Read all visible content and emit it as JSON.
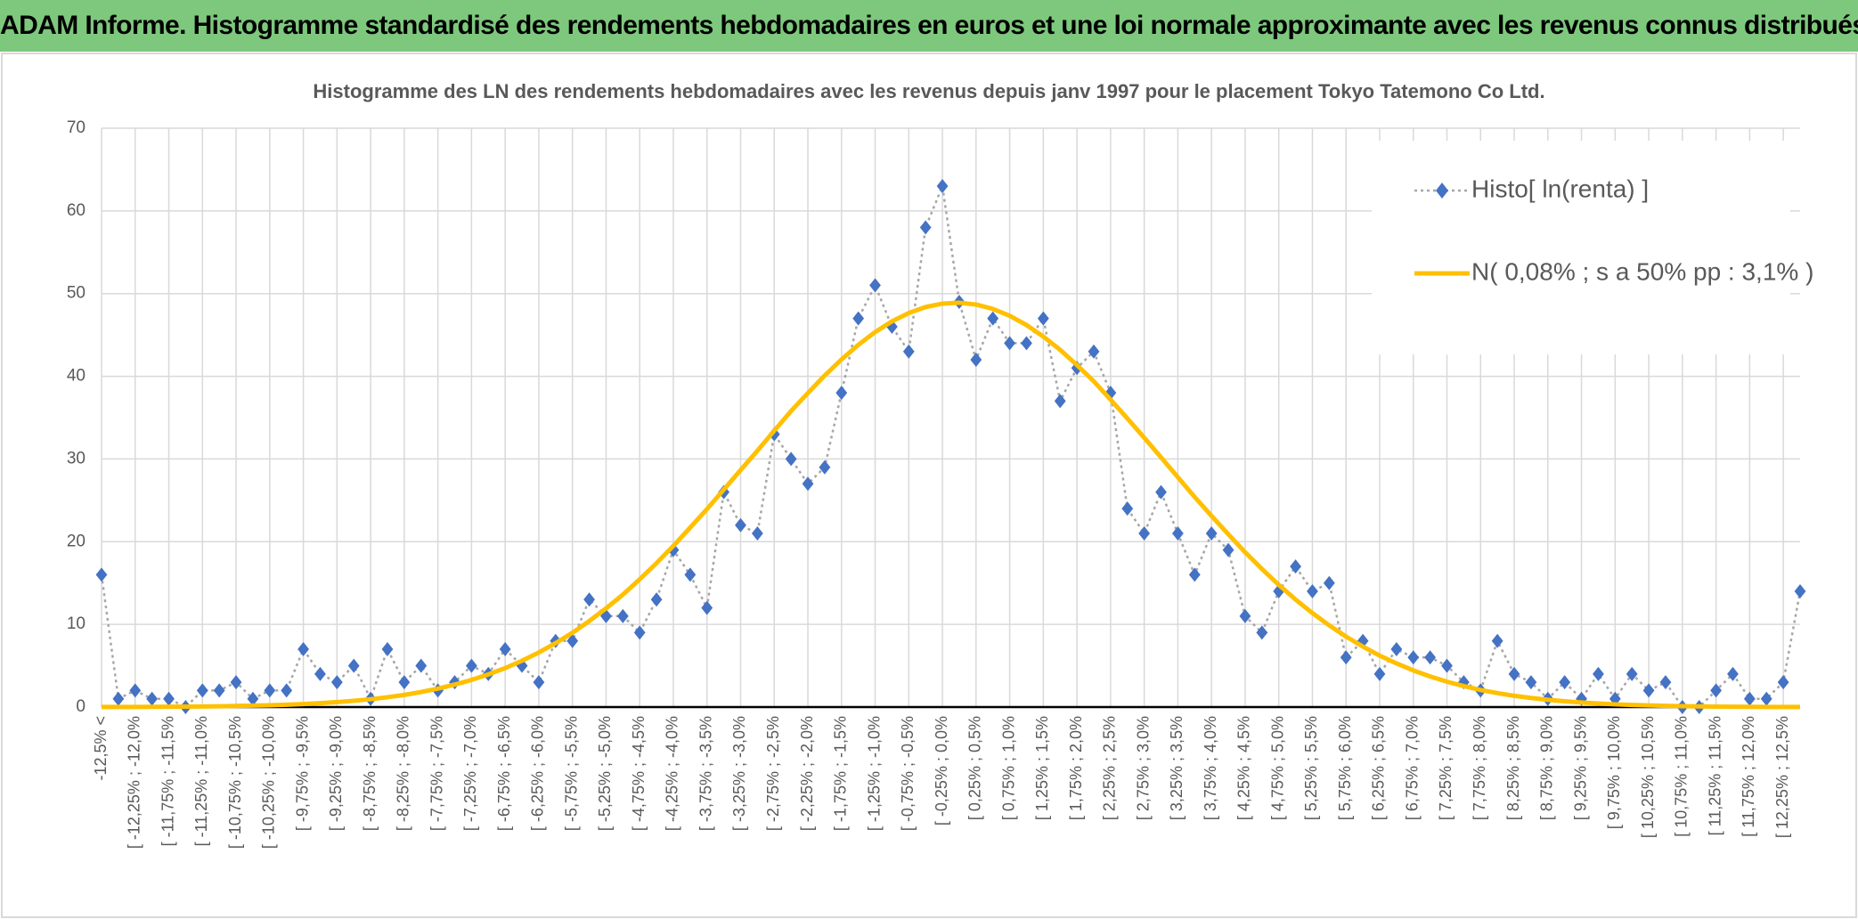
{
  "header": {
    "title": "ADAM Informe. Histogramme standardisé des rendements hebdomadaires en euros et une loi normale approximante avec les revenus connus distribués"
  },
  "chart_data": {
    "type": "line",
    "title": "Histogramme des LN des rendements hebdomadaires avec les revenus depuis janv 1997 pour le placement Tokyo Tatemono Co Ltd.",
    "categories": [
      "-12,5% <",
      null,
      "[ -12,25% ; -12,0%",
      null,
      "[ -11,75% ; -11,5%",
      null,
      "[ -11,25% ; -11,0%",
      null,
      "[ -10,75% ; -10,5%",
      null,
      "[ -10,25% ; -10,0%",
      null,
      "[ -9,75% ; -9,5%",
      null,
      "[ -9,25% ; -9,0%",
      null,
      "[ -8,75% ; -8,5%",
      null,
      "[ -8,25% ; -8,0%",
      null,
      "[ -7,75% ; -7,5%",
      null,
      "[ -7,25% ; -7,0%",
      null,
      "[ -6,75% ; -6,5%",
      null,
      "[ -6,25% ; -6,0%",
      null,
      "[ -5,75% ; -5,5%",
      null,
      "[ -5,25% ; -5,0%",
      null,
      "[ -4,75% ; -4,5%",
      null,
      "[ -4,25% ; -4,0%",
      null,
      "[ -3,75% ; -3,5%",
      null,
      "[ -3,25% ; -3,0%",
      null,
      "[ -2,75% ; -2,5%",
      null,
      "[ -2,25% ; -2,0%",
      null,
      "[ -1,75% ; -1,5%",
      null,
      "[ -1,25% ; -1,0%",
      null,
      "[ -0,75% ; -0,5%",
      null,
      "[ -0,25% ; 0,0%",
      null,
      "[ 0,25% ; 0,5%",
      null,
      "[ 0,75% ; 1,0%",
      null,
      "[ 1,25% ; 1,5%",
      null,
      "[ 1,75% ; 2,0%",
      null,
      "[ 2,25% ; 2,5%",
      null,
      "[ 2,75% ; 3,0%",
      null,
      "[ 3,25% ; 3,5%",
      null,
      "[ 3,75% ; 4,0%",
      null,
      "[ 4,25% ; 4,5%",
      null,
      "[ 4,75% ; 5,0%",
      null,
      "[ 5,25% ; 5,5%",
      null,
      "[ 5,75% ; 6,0%",
      null,
      "[ 6,25% ; 6,5%",
      null,
      "[ 6,75% ; 7,0%",
      null,
      "[ 7,25% ; 7,5%",
      null,
      "[ 7,75% ; 8,0%",
      null,
      "[ 8,25% ; 8,5%",
      null,
      "[ 8,75% ; 9,0%",
      null,
      "[ 9,25% ; 9,5%",
      null,
      "[ 9,75% ; 10,0%",
      null,
      "[ 10,25% ; 10,5%",
      null,
      "[ 10,75% ; 11,0%",
      null,
      "[ 11,25% ; 11,5%",
      null,
      "[ 11,75% ; 12,0%",
      null,
      "[ 12,25% ; 12,5%",
      null
    ],
    "series": [
      {
        "name": "Histo[ ln(renta) ]",
        "color": "#4472c4",
        "line_color": "#a6a6a6",
        "line_style": "dotted",
        "marker": "diamond",
        "values": [
          16,
          1,
          2,
          1,
          1,
          0,
          2,
          2,
          3,
          1,
          2,
          2,
          7,
          4,
          3,
          5,
          1,
          7,
          3,
          5,
          2,
          3,
          5,
          4,
          7,
          5,
          3,
          8,
          8,
          13,
          11,
          11,
          9,
          13,
          19,
          16,
          12,
          26,
          22,
          21,
          33,
          30,
          27,
          29,
          38,
          47,
          51,
          46,
          43,
          58,
          63,
          49,
          42,
          47,
          44,
          44,
          47,
          37,
          41,
          43,
          38,
          24,
          21,
          26,
          21,
          16,
          21,
          19,
          11,
          9,
          14,
          17,
          14,
          15,
          6,
          8,
          4,
          7,
          6,
          6,
          5,
          3,
          2,
          8,
          4,
          3,
          1,
          3,
          1,
          4,
          1,
          4,
          2,
          3,
          0,
          0,
          2,
          4,
          1,
          1,
          3,
          14
        ]
      },
      {
        "name": "N( 0,08% ; s a 50% pp : 3,1% )",
        "color": "#ffc000",
        "line_style": "solid",
        "marker": "none",
        "values": [
          0.01,
          0.01,
          0.02,
          0.03,
          0.04,
          0.05,
          0.07,
          0.1,
          0.13,
          0.17,
          0.22,
          0.28,
          0.36,
          0.47,
          0.6,
          0.76,
          0.95,
          1.19,
          1.47,
          1.82,
          2.23,
          2.72,
          3.28,
          3.95,
          4.71,
          5.6,
          6.6,
          7.73,
          8.99,
          10.4,
          11.94,
          13.6,
          15.45,
          17.4,
          19.49,
          21.7,
          23.94,
          26.3,
          28.66,
          31.0,
          33.42,
          35.8,
          37.97,
          40.1,
          42.04,
          43.8,
          45.35,
          46.64,
          47.65,
          48.38,
          48.79,
          48.9,
          48.68,
          48.15,
          47.32,
          46.2,
          44.81,
          43.2,
          41.36,
          39.4,
          37.18,
          34.9,
          32.57,
          30.2,
          27.8,
          25.4,
          23.12,
          20.9,
          18.72,
          16.7,
          14.78,
          13.0,
          11.37,
          9.88,
          8.52,
          7.32,
          6.22,
          5.28,
          4.43,
          3.7,
          3.07,
          2.54,
          2.07,
          1.69,
          1.36,
          1.1,
          0.87,
          0.7,
          0.55,
          0.43,
          0.33,
          0.26,
          0.2,
          0.15,
          0.11,
          0.08,
          0.06,
          0.04,
          0.03,
          0.02,
          0.02,
          0.01
        ]
      }
    ],
    "ylim": [
      0,
      70
    ],
    "yticks": [
      0,
      10,
      20,
      30,
      40,
      50,
      60,
      70
    ],
    "grid": true,
    "legend": "upper right"
  }
}
